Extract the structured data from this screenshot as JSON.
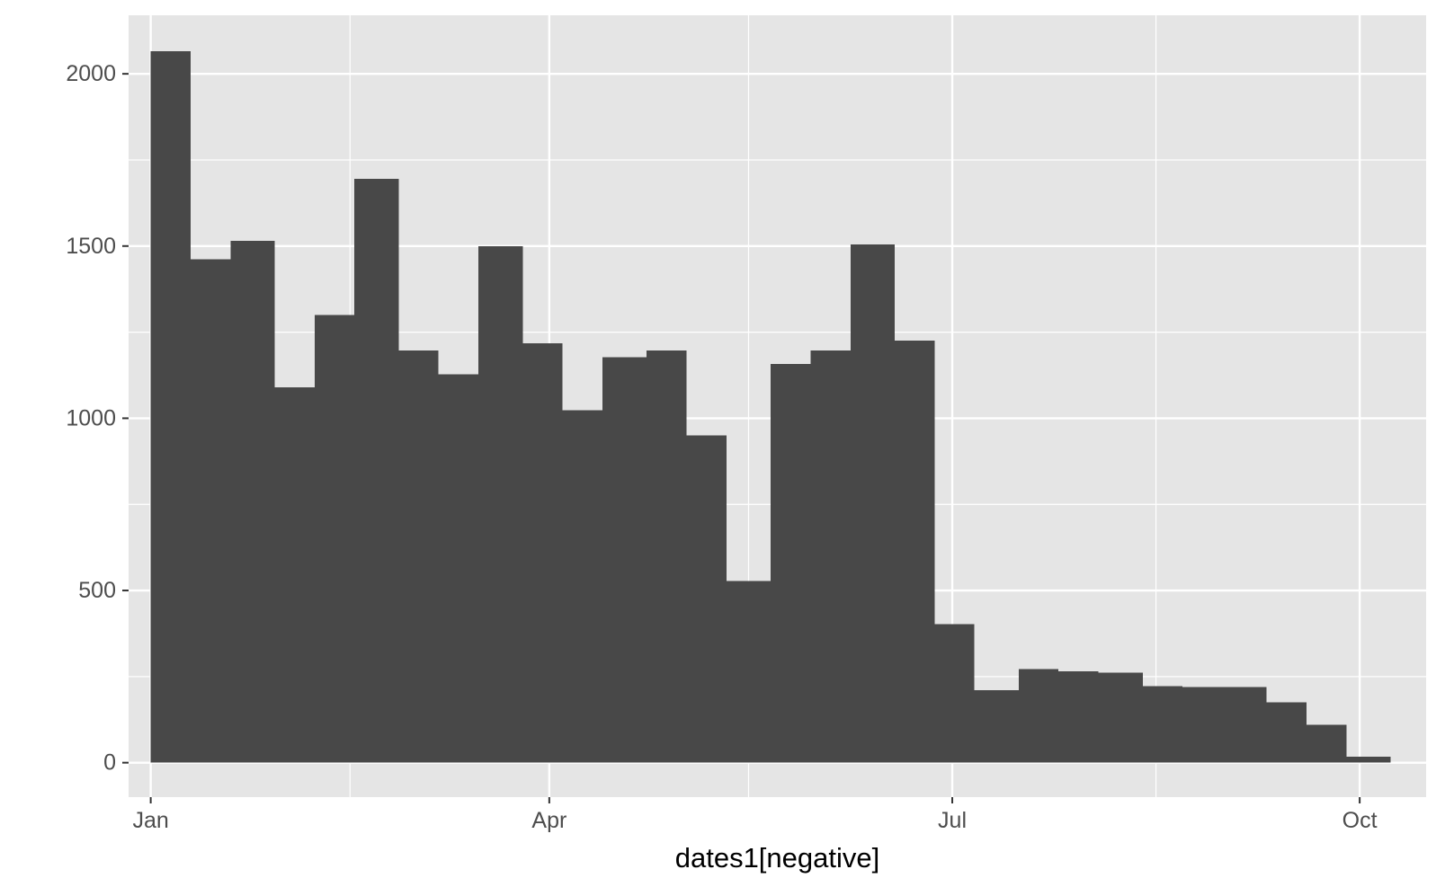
{
  "chart_data": {
    "type": "bar",
    "subtype": "histogram",
    "title": "",
    "xlabel": "dates1[negative]",
    "ylabel": "",
    "x_axis": {
      "type": "date",
      "range": [
        "2022-12-27",
        "2023-10-16"
      ],
      "ticks": [
        {
          "date": "2023-01-01",
          "label": "Jan"
        },
        {
          "date": "2023-04-01",
          "label": "Apr"
        },
        {
          "date": "2023-07-01",
          "label": "Jul"
        },
        {
          "date": "2023-10-01",
          "label": "Oct"
        }
      ],
      "minor_grid": [
        "2023-02-15",
        "2023-05-16",
        "2023-08-16"
      ]
    },
    "y_axis": {
      "ylim": [
        -100,
        2170
      ],
      "ticks": [
        0,
        500,
        1000,
        1500,
        2000
      ],
      "minor_grid": [
        250,
        750,
        1250,
        1750
      ]
    },
    "bin_edges": [
      "2023-01-01",
      "2023-01-10",
      "2023-01-19",
      "2023-01-29",
      "2023-02-07",
      "2023-02-16",
      "2023-02-26",
      "2023-03-07",
      "2023-03-16",
      "2023-03-26",
      "2023-04-04",
      "2023-04-13",
      "2023-04-23",
      "2023-05-02",
      "2023-05-11",
      "2023-05-21",
      "2023-05-30",
      "2023-06-08",
      "2023-06-18",
      "2023-06-27",
      "2023-07-06",
      "2023-07-16",
      "2023-07-25",
      "2023-08-03",
      "2023-08-13",
      "2023-08-22",
      "2023-08-31",
      "2023-09-10",
      "2023-09-19",
      "2023-09-28",
      "2023-10-08"
    ],
    "values": [
      2065,
      1462,
      1515,
      1090,
      1300,
      1695,
      1197,
      1128,
      1500,
      1217,
      1023,
      1177,
      1197,
      950,
      527,
      1158,
      1197,
      1505,
      1225,
      402,
      210,
      272,
      265,
      262,
      222,
      220,
      220,
      175,
      110,
      18
    ],
    "grid": true,
    "legend": "none",
    "colors": {
      "panel_background": "#e5e5e5",
      "grid": "#ffffff",
      "bar_fill": "#484848",
      "tick_text": "#4d4d4d",
      "tick_mark": "#333333",
      "axis_title": "#000000"
    }
  }
}
